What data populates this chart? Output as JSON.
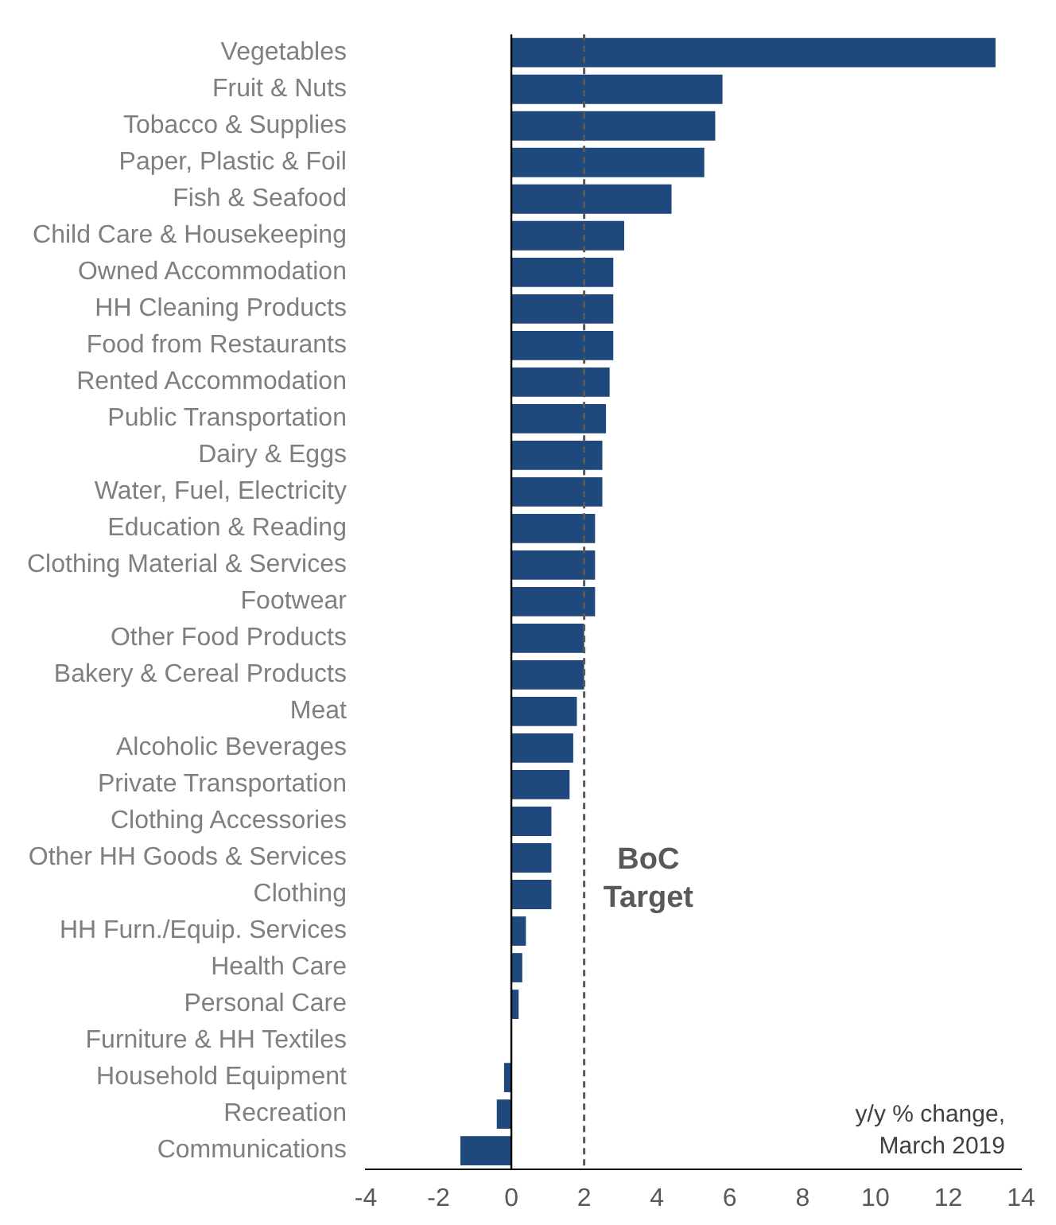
{
  "chart_data": {
    "type": "bar",
    "orientation": "horizontal",
    "categories": [
      "Vegetables",
      "Fruit & Nuts",
      "Tobacco & Supplies",
      "Paper, Plastic & Foil",
      "Fish & Seafood",
      "Child Care & Housekeeping",
      "Owned Accommodation",
      "HH Cleaning Products",
      "Food from Restaurants",
      "Rented Accommodation",
      "Public Transportation",
      "Dairy & Eggs",
      "Water, Fuel, Electricity",
      "Education & Reading",
      "Clothing Material & Services",
      "Footwear",
      "Other Food Products",
      "Bakery & Cereal Products",
      "Meat",
      "Alcoholic Beverages",
      "Private Transportation",
      "Clothing Accessories",
      "Other HH Goods & Services",
      "Clothing",
      "HH Furn./Equip. Services",
      "Health Care",
      "Personal Care",
      "Furniture & HH Textiles",
      "Household Equipment",
      "Recreation",
      "Communications"
    ],
    "values": [
      13.3,
      5.8,
      5.6,
      5.3,
      4.4,
      3.1,
      2.8,
      2.8,
      2.8,
      2.7,
      2.6,
      2.5,
      2.5,
      2.3,
      2.3,
      2.3,
      2.0,
      2.0,
      1.8,
      1.7,
      1.6,
      1.1,
      1.1,
      1.1,
      0.4,
      0.3,
      0.2,
      0,
      -0.2,
      -0.4,
      -1.4
    ],
    "color": "#1f497d",
    "xlim": [
      -4,
      14
    ],
    "xticks": [
      -4,
      -2,
      0,
      2,
      4,
      6,
      8,
      10,
      12,
      14
    ],
    "ref_lines": [
      {
        "axis": "x",
        "value": 2,
        "label": "BoC Target",
        "line_style": "dashed",
        "color": "#595959"
      }
    ],
    "annotations": [
      "y/y % change, March 2019"
    ],
    "grid": false,
    "legend": false
  }
}
